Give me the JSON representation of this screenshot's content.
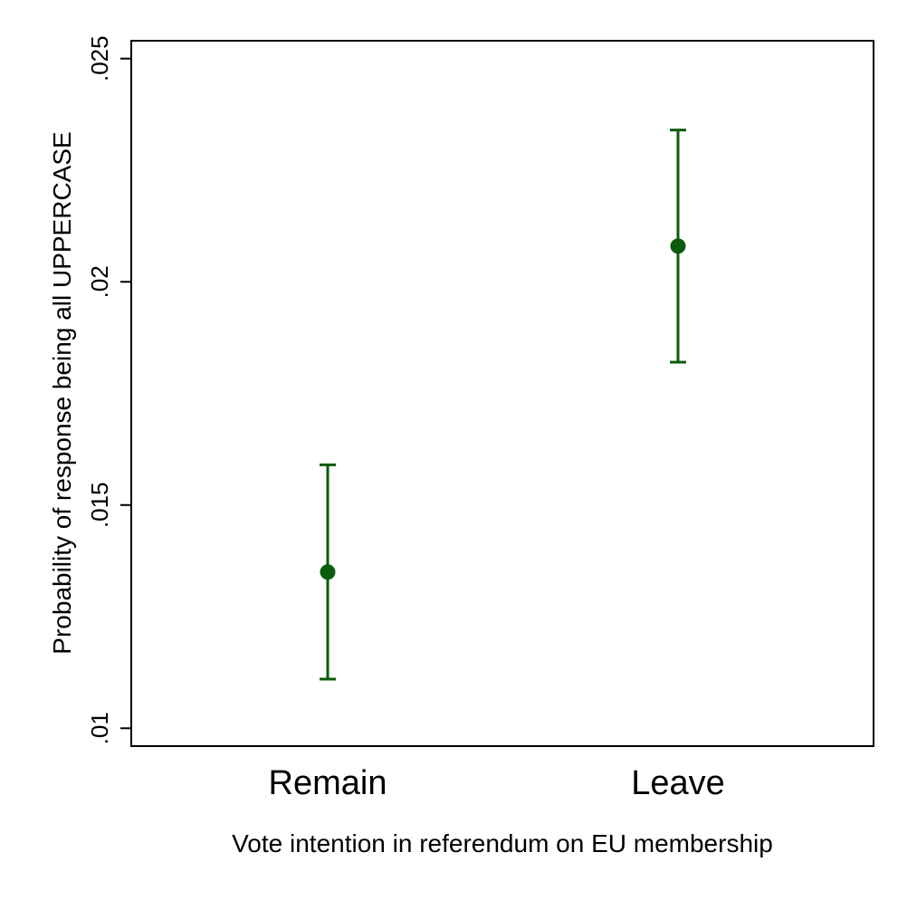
{
  "chart_data": {
    "type": "scatter",
    "subtype": "point-with-error-bars",
    "title": "",
    "xlabel": "Vote intention in referendum on EU membership",
    "ylabel": "Probability of response being all UPPERCASE",
    "categories": [
      "Remain",
      "Leave"
    ],
    "series": [
      {
        "values": [
          0.0135,
          0.0208
        ],
        "ci_low": [
          0.0111,
          0.0182
        ],
        "ci_high": [
          0.0159,
          0.0234
        ]
      }
    ],
    "ylim": [
      0.0096,
      0.0254
    ],
    "yticks": [
      0.01,
      0.015,
      0.02,
      0.025
    ],
    "ytick_labels": [
      ".01",
      ".015",
      ".02",
      ".025"
    ],
    "grid": false,
    "legend": "none",
    "color": "#0a5c0a"
  }
}
